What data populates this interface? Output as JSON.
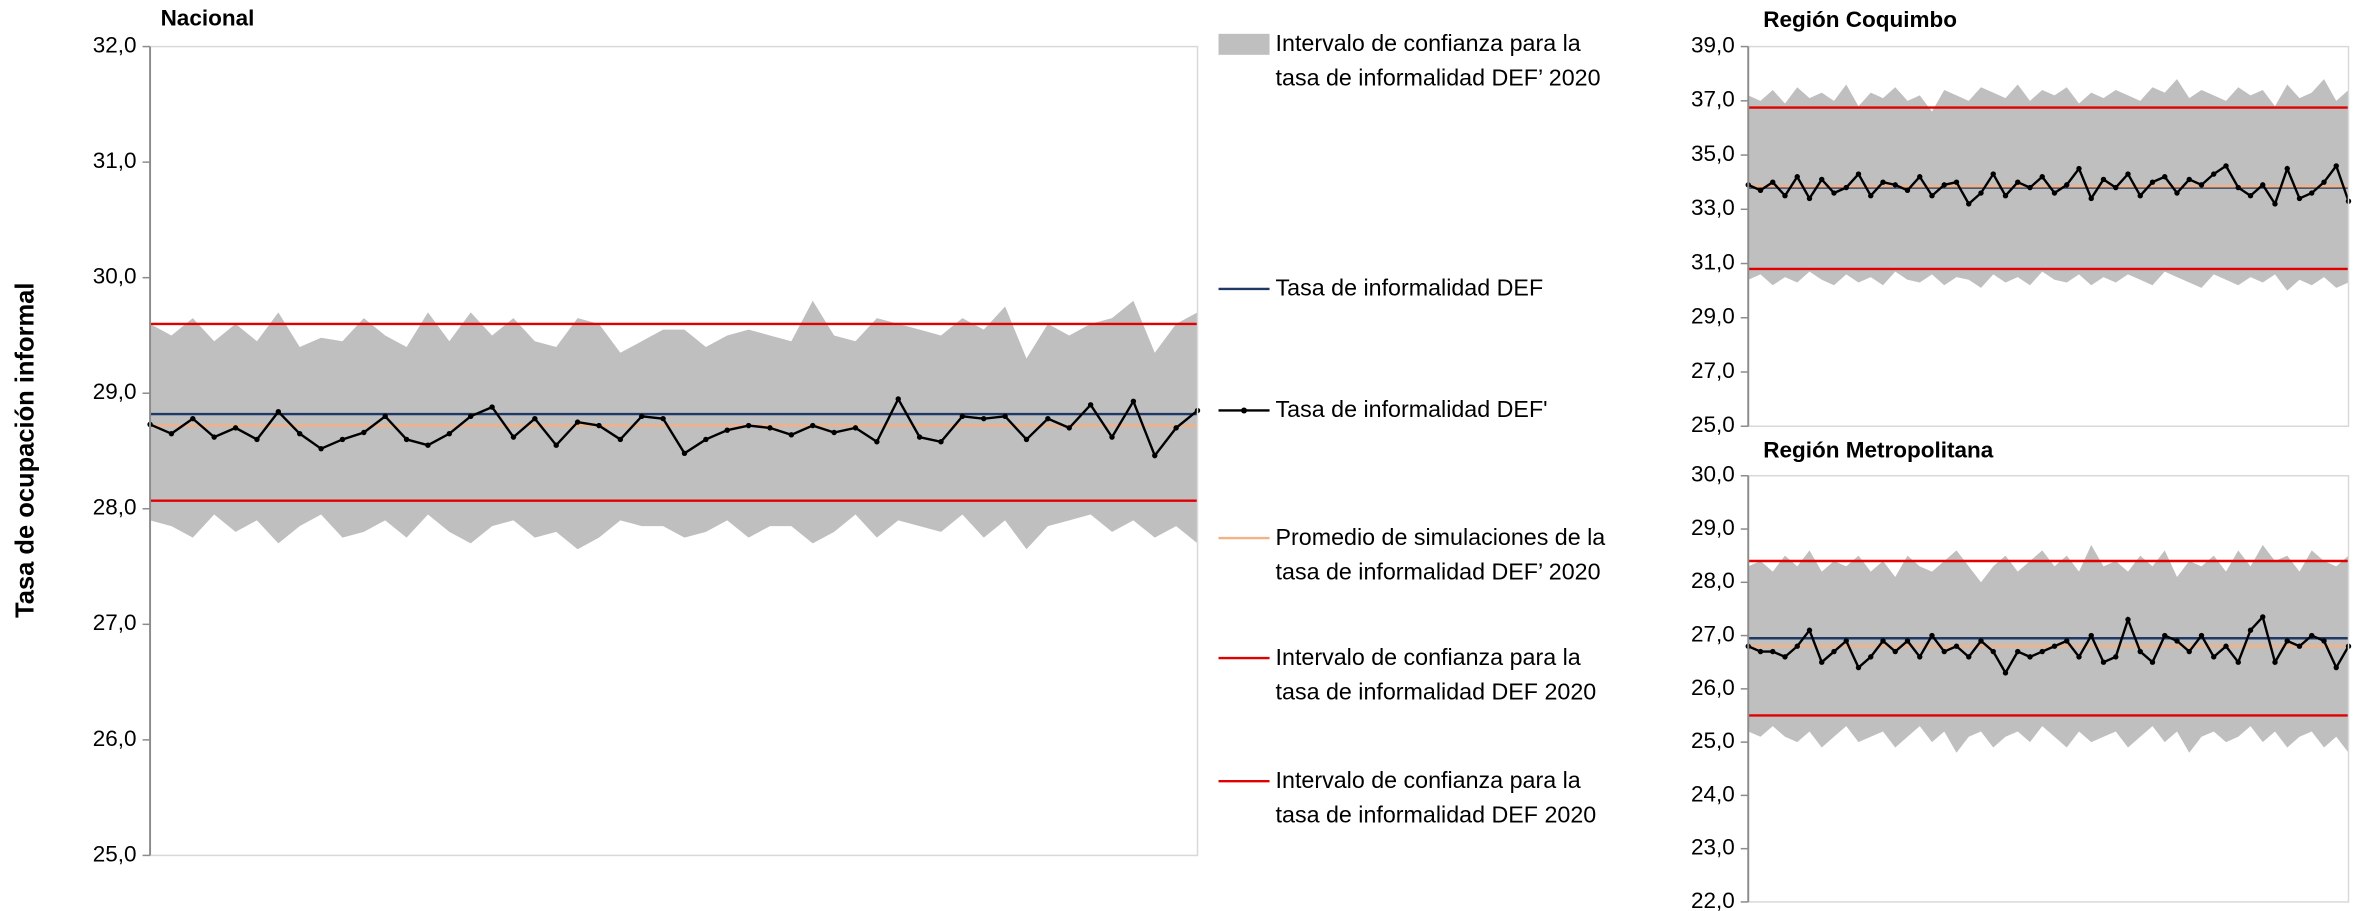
{
  "ylabel": "Tasa de ocupación informal",
  "chart_data": [
    {
      "type": "line",
      "title": "Nacional",
      "ylim": [
        25,
        32
      ],
      "yticks": [
        {
          "value": 25,
          "label": "25,0"
        },
        {
          "value": 26,
          "label": "26,0"
        },
        {
          "value": 27,
          "label": "27,0"
        },
        {
          "value": 28,
          "label": "28,0"
        },
        {
          "value": 29,
          "label": "29,0"
        },
        {
          "value": 30,
          "label": "30,0"
        },
        {
          "value": 31,
          "label": "31,0"
        },
        {
          "value": 32,
          "label": "32,0"
        }
      ],
      "band": {
        "name": "Intervalo de confianza para la tasa de informalidad DEF’ 2020",
        "color": "#bfbfbf",
        "upper": [
          29.6,
          29.5,
          29.65,
          29.45,
          29.6,
          29.45,
          29.7,
          29.4,
          29.48,
          29.45,
          29.65,
          29.5,
          29.4,
          29.7,
          29.45,
          29.7,
          29.5,
          29.65,
          29.45,
          29.4,
          29.65,
          29.6,
          29.35,
          29.45,
          29.55,
          29.55,
          29.4,
          29.5,
          29.55,
          29.5,
          29.45,
          29.8,
          29.5,
          29.45,
          29.65,
          29.6,
          29.55,
          29.5,
          29.65,
          29.55,
          29.75,
          29.3,
          29.6,
          29.5,
          29.6,
          29.65,
          29.8,
          29.35,
          29.6,
          29.7
        ],
        "lower": [
          27.9,
          27.85,
          27.75,
          27.95,
          27.8,
          27.9,
          27.7,
          27.85,
          27.95,
          27.75,
          27.8,
          27.9,
          27.75,
          27.95,
          27.8,
          27.7,
          27.85,
          27.9,
          27.75,
          27.8,
          27.65,
          27.75,
          27.9,
          27.85,
          27.85,
          27.75,
          27.8,
          27.9,
          27.75,
          27.85,
          27.85,
          27.7,
          27.8,
          27.95,
          27.75,
          27.9,
          27.85,
          27.8,
          27.95,
          27.75,
          27.9,
          27.65,
          27.85,
          27.9,
          27.95,
          27.8,
          27.9,
          27.75,
          27.85,
          27.7
        ]
      },
      "series": [
        {
          "name": "Tasa de informalidad DEF'",
          "color": "#000000",
          "values": [
            28.73,
            28.65,
            28.78,
            28.62,
            28.7,
            28.6,
            28.84,
            28.65,
            28.52,
            28.6,
            28.66,
            28.8,
            28.6,
            28.55,
            28.65,
            28.8,
            28.88,
            28.62,
            28.78,
            28.55,
            28.75,
            28.72,
            28.6,
            28.8,
            28.78,
            28.48,
            28.6,
            28.68,
            28.72,
            28.7,
            28.64,
            28.72,
            28.66,
            28.7,
            28.58,
            28.95,
            28.62,
            28.58,
            28.8,
            28.78,
            28.8,
            28.6,
            28.78,
            28.7,
            28.9,
            28.62,
            28.93,
            28.46,
            28.7,
            28.85
          ]
        }
      ],
      "lines": [
        {
          "name": "Tasa de informalidad DEF",
          "color": "#1f3864",
          "value": 28.82
        },
        {
          "name": "Promedio de simulaciones de la tasa de informalidad DEF’ 2020",
          "color": "#f4b183",
          "value": 28.72
        },
        {
          "name": "Intervalo de confianza para la tasa de informalidad DEF 2020",
          "color": "#e00000",
          "value": 29.6
        },
        {
          "name": "Intervalo de confianza para la tasa de informalidad DEF 2020",
          "color": "#e00000",
          "value": 28.07
        }
      ]
    },
    {
      "type": "line",
      "title": "Región Coquimbo",
      "ylim": [
        25,
        39
      ],
      "yticks": [
        {
          "value": 25,
          "label": "25,0"
        },
        {
          "value": 27,
          "label": "27,0"
        },
        {
          "value": 29,
          "label": "29,0"
        },
        {
          "value": 31,
          "label": "31,0"
        },
        {
          "value": 33,
          "label": "33,0"
        },
        {
          "value": 35,
          "label": "35,0"
        },
        {
          "value": 37,
          "label": "37,0"
        },
        {
          "value": 39,
          "label": "39,0"
        }
      ],
      "band": {
        "color": "#bfbfbf",
        "upper": [
          37.2,
          37.0,
          37.4,
          36.9,
          37.5,
          37.1,
          37.3,
          37.0,
          37.6,
          36.8,
          37.3,
          37.1,
          37.5,
          37.0,
          37.2,
          36.6,
          37.4,
          37.2,
          37.0,
          37.5,
          37.3,
          37.1,
          37.6,
          37.0,
          37.4,
          37.2,
          37.5,
          36.9,
          37.3,
          37.1,
          37.4,
          37.2,
          37.0,
          37.5,
          37.3,
          37.8,
          37.1,
          37.4,
          37.2,
          37.0,
          37.5,
          37.2,
          37.4,
          36.8,
          37.6,
          37.1,
          37.3,
          37.8,
          37.0,
          37.4
        ],
        "lower": [
          30.4,
          30.6,
          30.2,
          30.5,
          30.3,
          30.7,
          30.4,
          30.2,
          30.6,
          30.3,
          30.5,
          30.2,
          30.7,
          30.4,
          30.3,
          30.6,
          30.2,
          30.5,
          30.4,
          30.1,
          30.6,
          30.3,
          30.5,
          30.2,
          30.7,
          30.4,
          30.3,
          30.6,
          30.2,
          30.5,
          30.3,
          30.6,
          30.4,
          30.2,
          30.7,
          30.5,
          30.3,
          30.1,
          30.6,
          30.4,
          30.2,
          30.5,
          30.3,
          30.6,
          30.0,
          30.4,
          30.2,
          30.5,
          30.1,
          30.3
        ]
      },
      "series": [
        {
          "color": "#000000",
          "values": [
            33.9,
            33.7,
            34.0,
            33.5,
            34.2,
            33.4,
            34.1,
            33.6,
            33.8,
            34.3,
            33.5,
            34.0,
            33.9,
            33.7,
            34.2,
            33.5,
            33.9,
            34.0,
            33.2,
            33.6,
            34.3,
            33.5,
            34.0,
            33.8,
            34.2,
            33.6,
            33.9,
            34.5,
            33.4,
            34.1,
            33.8,
            34.3,
            33.5,
            34.0,
            34.2,
            33.6,
            34.1,
            33.9,
            34.3,
            34.6,
            33.8,
            33.5,
            33.9,
            33.2,
            34.5,
            33.4,
            33.6,
            34.0,
            34.6,
            33.3
          ]
        }
      ],
      "lines": [
        {
          "color": "#1f3864",
          "value": 33.8
        },
        {
          "color": "#f4b183",
          "value": 33.85
        },
        {
          "color": "#e00000",
          "value": 36.75
        },
        {
          "color": "#e00000",
          "value": 30.8
        }
      ]
    },
    {
      "type": "line",
      "title": "Región Metropolitana",
      "ylim": [
        22,
        30
      ],
      "yticks": [
        {
          "value": 22,
          "label": "22,0"
        },
        {
          "value": 23,
          "label": "23,0"
        },
        {
          "value": 24,
          "label": "24,0"
        },
        {
          "value": 25,
          "label": "25,0"
        },
        {
          "value": 26,
          "label": "26,0"
        },
        {
          "value": 27,
          "label": "27,0"
        },
        {
          "value": 28,
          "label": "28,0"
        },
        {
          "value": 29,
          "label": "29,0"
        },
        {
          "value": 30,
          "label": "30,0"
        }
      ],
      "band": {
        "color": "#bfbfbf",
        "upper": [
          28.3,
          28.4,
          28.2,
          28.5,
          28.3,
          28.6,
          28.2,
          28.4,
          28.3,
          28.5,
          28.2,
          28.4,
          28.1,
          28.5,
          28.3,
          28.2,
          28.4,
          28.6,
          28.3,
          28.0,
          28.3,
          28.5,
          28.2,
          28.4,
          28.6,
          28.3,
          28.5,
          28.2,
          28.7,
          28.3,
          28.4,
          28.2,
          28.5,
          28.3,
          28.6,
          28.1,
          28.4,
          28.3,
          28.5,
          28.2,
          28.6,
          28.3,
          28.7,
          28.4,
          28.5,
          28.2,
          28.6,
          28.4,
          28.3,
          28.5
        ],
        "lower": [
          25.2,
          25.1,
          25.3,
          25.1,
          25.0,
          25.2,
          24.9,
          25.1,
          25.3,
          25.0,
          25.1,
          25.2,
          24.9,
          25.1,
          25.3,
          25.0,
          25.2,
          24.8,
          25.1,
          25.2,
          24.9,
          25.1,
          25.2,
          25.0,
          25.3,
          25.1,
          24.9,
          25.2,
          25.0,
          25.1,
          25.2,
          24.9,
          25.1,
          25.3,
          25.0,
          25.2,
          24.8,
          25.1,
          25.2,
          25.0,
          25.1,
          25.3,
          25.0,
          25.2,
          24.9,
          25.1,
          25.2,
          24.9,
          25.1,
          24.8
        ]
      },
      "series": [
        {
          "color": "#000000",
          "values": [
            26.8,
            26.7,
            26.7,
            26.6,
            26.8,
            27.1,
            26.5,
            26.7,
            26.9,
            26.4,
            26.6,
            26.9,
            26.7,
            26.9,
            26.6,
            27.0,
            26.7,
            26.8,
            26.6,
            26.9,
            26.7,
            26.3,
            26.7,
            26.6,
            26.7,
            26.8,
            26.9,
            26.6,
            27.0,
            26.5,
            26.6,
            27.3,
            26.7,
            26.5,
            27.0,
            26.9,
            26.7,
            27.0,
            26.6,
            26.8,
            26.5,
            27.1,
            27.35,
            26.5,
            26.9,
            26.8,
            27.0,
            26.9,
            26.4,
            26.8
          ]
        }
      ],
      "lines": [
        {
          "color": "#1f3864",
          "value": 26.95
        },
        {
          "color": "#f4b183",
          "value": 26.8
        },
        {
          "color": "#e00000",
          "value": 28.4
        },
        {
          "color": "#e00000",
          "value": 25.5
        }
      ]
    }
  ]
}
